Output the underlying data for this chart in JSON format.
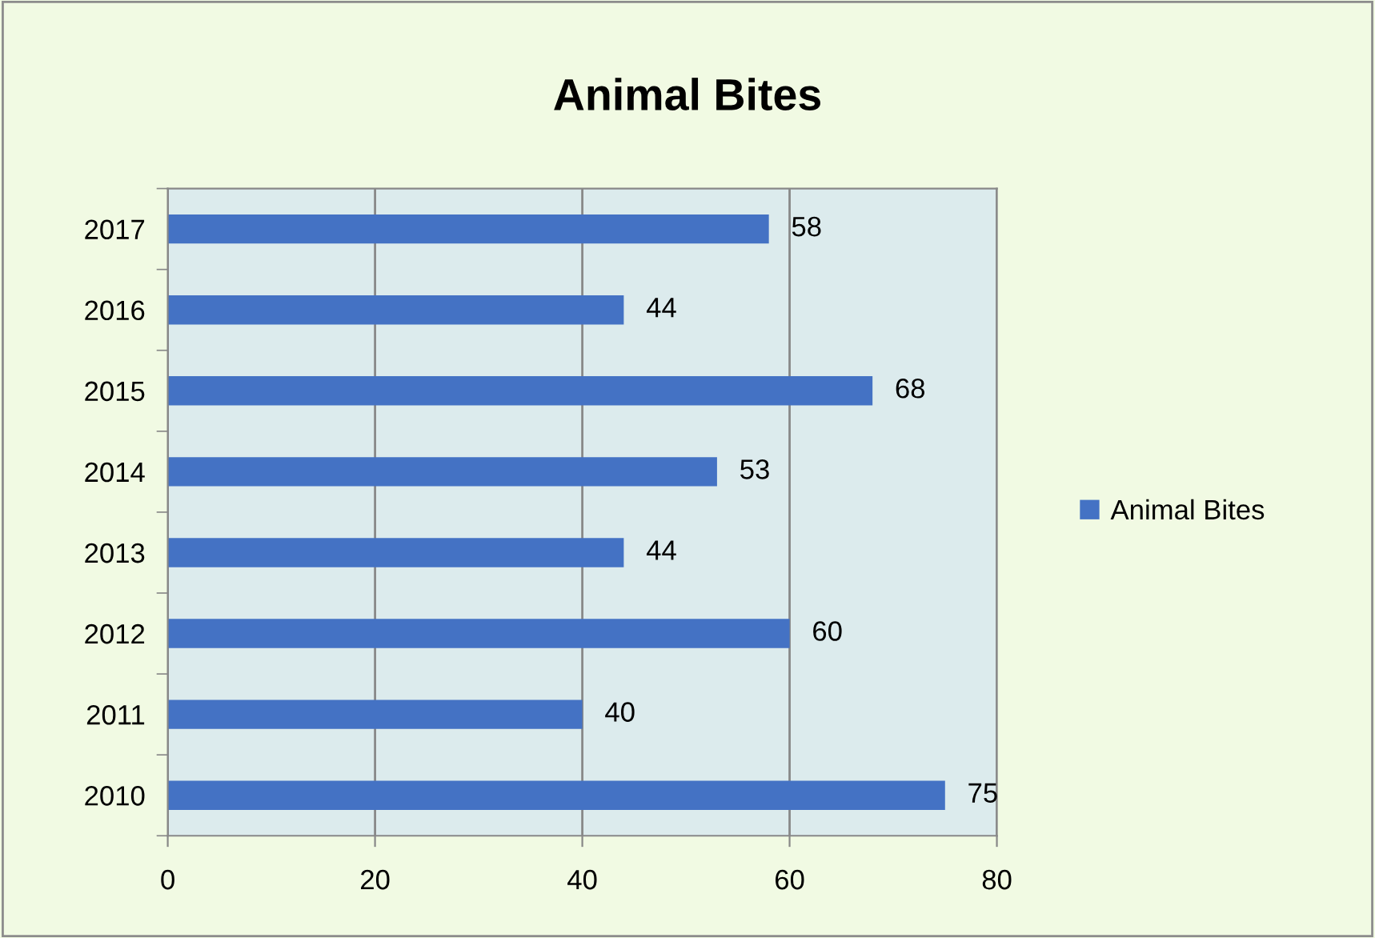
{
  "chart_data": {
    "type": "bar",
    "orientation": "horizontal",
    "title": "Animal Bites",
    "categories": [
      "2017",
      "2016",
      "2015",
      "2014",
      "2013",
      "2012",
      "2011",
      "2010"
    ],
    "series": [
      {
        "name": "Animal Bites",
        "color": "#4472c4",
        "values": [
          58,
          44,
          68,
          53,
          44,
          60,
          40,
          75
        ]
      }
    ],
    "xlim": [
      0,
      80
    ],
    "xticks": [
      0,
      20,
      40,
      60,
      80
    ],
    "grid": "x",
    "legend": "right",
    "data_labels": true
  }
}
